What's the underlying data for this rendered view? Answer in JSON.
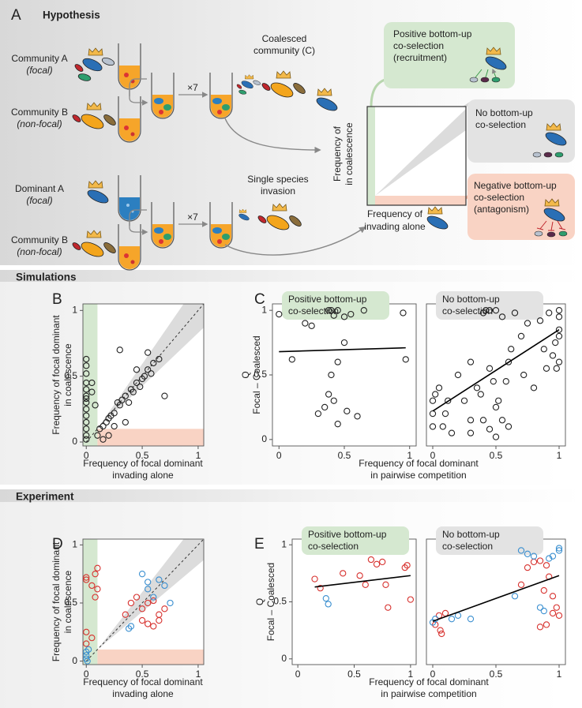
{
  "hypothesis": {
    "letter": "A",
    "title": "Hypothesis",
    "community_a": [
      "Community A",
      "(focal)"
    ],
    "community_b1": [
      "Community B",
      "(non-focal)"
    ],
    "repeat1": "×7",
    "coalesced": [
      "Coalesced",
      "community (C)"
    ],
    "dominant_a": [
      "Dominant A",
      "(focal)"
    ],
    "community_b2": [
      "Community B",
      "(non-focal)"
    ],
    "repeat2": "×7",
    "single": [
      "Single species",
      "invasion"
    ],
    "axis_y": [
      "Frequency of",
      "in coalescence"
    ],
    "axis_x": [
      "Frequency of",
      "invading alone"
    ],
    "positive": [
      "Positive bottom-up",
      "co-selection",
      "(recruitment)"
    ],
    "none": [
      "No bottom-up",
      "co-selection"
    ],
    "negative": [
      "Negative bottom-up",
      "co-selection",
      "(antagonism)"
    ]
  },
  "sections": {
    "simulations": "Simulations",
    "experiment": "Experiment"
  },
  "chart_data": [
    {
      "type": "scatter",
      "label": "B",
      "xlabel": [
        "Frequency of focal dominant",
        "invading alone"
      ],
      "ylabel": [
        "Frequency of focal dominant",
        "in coalescence"
      ],
      "xlim": [
        -0.03,
        1.05
      ],
      "ylim": [
        -0.03,
        1.05
      ],
      "xticks": [
        0,
        0.5,
        1
      ],
      "yticks": [
        0,
        0.5,
        1
      ],
      "diagonal": true,
      "shade": 0.1,
      "series": [
        {
          "color": "#222222",
          "x": [
            0,
            0,
            0,
            0,
            0,
            0,
            0,
            0,
            0,
            0,
            0,
            0,
            0,
            0,
            0.05,
            0.08,
            0.05,
            0.1,
            0.12,
            0.15,
            0.18,
            0.2,
            0.22,
            0.25,
            0.28,
            0.3,
            0.32,
            0.35,
            0.38,
            0.4,
            0.42,
            0.45,
            0.48,
            0.5,
            0.52,
            0.55,
            0.58,
            0.6,
            0.55,
            0.65,
            0.7,
            0.3,
            0.35,
            0.45,
            0.2,
            0.15,
            0.25
          ],
          "values": [
            0.63,
            0.58,
            0.52,
            0.45,
            0.4,
            0.35,
            0.33,
            0.3,
            0.25,
            0.2,
            0.15,
            0.1,
            0.05,
            0.02,
            0.45,
            0.28,
            0.38,
            0.05,
            0.1,
            0.12,
            0.15,
            0.18,
            0.2,
            0.22,
            0.3,
            0.28,
            0.32,
            0.35,
            0.3,
            0.4,
            0.38,
            0.45,
            0.42,
            0.48,
            0.5,
            0.55,
            0.52,
            0.6,
            0.68,
            0.63,
            0.35,
            0.7,
            0.15,
            0.55,
            0.05,
            0.02,
            0.12
          ]
        }
      ]
    },
    {
      "type": "scatter",
      "label": "C",
      "title": [
        "Positive bottom-up",
        "co-selection"
      ],
      "title_fill": "#d5e8d0",
      "ylabel": [
        "Q",
        "Focal – Coalesced"
      ],
      "xlabel": [
        "Frequency of focal dominant",
        "in pairwise competition"
      ],
      "xlim": [
        -0.05,
        1.05
      ],
      "ylim": [
        -0.05,
        1.05
      ],
      "xticks": [
        0,
        0.5,
        1
      ],
      "yticks": [
        0,
        0.5,
        1
      ],
      "series": [
        {
          "color": "#222222",
          "x": [
            0,
            0.1,
            0.2,
            0.25,
            0.3,
            0.38,
            0.4,
            0.42,
            0.45,
            0.45,
            0.4,
            0.35,
            0.38,
            0.42,
            0.45,
            0.5,
            0.52,
            0.55,
            0.5,
            0.6,
            0.65,
            0.95,
            0.97
          ],
          "values": [
            0.97,
            0.62,
            0.9,
            0.88,
            0.2,
            1,
            1,
            0.96,
            1,
            0.6,
            0.5,
            0.25,
            0.35,
            0.3,
            0.12,
            0.95,
            0.22,
            0.97,
            0.75,
            0.18,
            1,
            0.98,
            0.62
          ]
        }
      ],
      "fit": {
        "color": "#000000",
        "x": [
          0,
          0.97
        ],
        "values": [
          0.68,
          0.71
        ]
      }
    },
    {
      "type": "scatter",
      "title": [
        "No bottom-up",
        "co-selection"
      ],
      "title_fill": "#e3e3e3",
      "xlim": [
        -0.05,
        1.05
      ],
      "ylim": [
        -0.05,
        1.05
      ],
      "xticks": [
        0,
        0.5,
        1
      ],
      "series": [
        {
          "color": "#222222",
          "x": [
            0,
            0,
            0,
            0.02,
            0.05,
            0.08,
            0.1,
            0.12,
            0.15,
            0.2,
            0.25,
            0.3,
            0.3,
            0.35,
            0.38,
            0.4,
            0.42,
            0.45,
            0.45,
            0.48,
            0.5,
            0.5,
            0.52,
            0.55,
            0.55,
            0.58,
            0.6,
            0.6,
            0.62,
            0.65,
            0.7,
            0.72,
            0.75,
            0.8,
            0.85,
            0.88,
            0.9,
            0.92,
            0.95,
            0.97,
            1,
            1,
            1,
            1,
            1,
            0.98,
            0.45,
            0.5,
            0.4,
            0.3
          ],
          "values": [
            0.3,
            0.2,
            0.1,
            0.35,
            0.4,
            0.1,
            0.2,
            0.3,
            0.05,
            0.5,
            0.3,
            0.15,
            0.6,
            0.4,
            0.35,
            0.98,
            1,
            1,
            0.55,
            0.45,
            1,
            0.25,
            0.3,
            0.95,
            0.15,
            0.45,
            0.6,
            0.1,
            0.7,
            0.98,
            0.8,
            0.5,
            0.9,
            0.4,
            0.92,
            0.7,
            0.55,
            0.98,
            0.65,
            0.75,
            1,
            0.95,
            0.85,
            0.6,
            0.8,
            0.55,
            0.08,
            0.02,
            0.15,
            0.05
          ]
        }
      ],
      "fit": {
        "color": "#000000",
        "x": [
          0,
          1
        ],
        "values": [
          0.22,
          0.85
        ]
      }
    },
    {
      "type": "scatter",
      "label": "D",
      "xlabel": [
        "Frequency of focal dominant",
        "invading alone"
      ],
      "ylabel": [
        "Frequency of focal dominant",
        "in coalescence"
      ],
      "xlim": [
        -0.03,
        1.05
      ],
      "ylim": [
        -0.03,
        1.05
      ],
      "xticks": [
        0,
        0.5,
        1
      ],
      "yticks": [
        0,
        0.5,
        1
      ],
      "diagonal": true,
      "shade": 0.1,
      "series": [
        {
          "color": "#d7312e",
          "x": [
            0,
            0,
            0,
            0,
            0.1,
            0.08,
            0.1,
            0.08,
            0.05,
            0.05,
            0.35,
            0.4,
            0.45,
            0.5,
            0.5,
            0.55,
            0.55,
            0.6,
            0.65,
            0.7,
            0.65,
            0.6
          ],
          "values": [
            0.72,
            0.7,
            0.25,
            0.15,
            0.8,
            0.75,
            0.62,
            0.55,
            0.65,
            0.2,
            0.4,
            0.5,
            0.55,
            0.45,
            0.35,
            0.5,
            0.32,
            0.52,
            0.4,
            0.45,
            0.35,
            0.3
          ]
        },
        {
          "color": "#3a8fd0",
          "x": [
            0,
            0,
            0,
            0.02,
            0.01,
            0.38,
            0.4,
            0.5,
            0.55,
            0.55,
            0.6,
            0.65,
            0.7,
            0.75
          ],
          "values": [
            0.02,
            0.05,
            0.08,
            0.1,
            0,
            0.28,
            0.3,
            0.75,
            0.68,
            0.62,
            0.55,
            0.7,
            0.65,
            0.5
          ]
        }
      ]
    },
    {
      "type": "scatter",
      "label": "E",
      "title": [
        "Positive bottom-up",
        "co-selection"
      ],
      "title_fill": "#d5e8d0",
      "ylabel": [
        "Q",
        "Focal – Coalesced"
      ],
      "xlabel": [
        "Frequency of focal dominant",
        "in pairwise competition"
      ],
      "xlim": [
        -0.05,
        1.05
      ],
      "ylim": [
        -0.05,
        1.05
      ],
      "xticks": [
        0,
        0.5,
        1
      ],
      "yticks": [
        0,
        0.5,
        1
      ],
      "series": [
        {
          "color": "#d7312e",
          "x": [
            0.15,
            0.2,
            0.4,
            0.55,
            0.6,
            0.65,
            0.7,
            0.75,
            0.78,
            0.8,
            0.95,
            0.97,
            1
          ],
          "values": [
            0.7,
            0.62,
            0.75,
            0.73,
            0.65,
            0.87,
            0.83,
            0.85,
            0.65,
            0.45,
            0.8,
            0.82,
            0.52
          ]
        },
        {
          "color": "#3a8fd0",
          "x": [
            0.25,
            0.27
          ],
          "values": [
            0.53,
            0.48
          ]
        }
      ],
      "fit": {
        "color": "#000000",
        "x": [
          0.15,
          1
        ],
        "values": [
          0.63,
          0.73
        ]
      }
    },
    {
      "type": "scatter",
      "title": [
        "No bottom-up",
        "co-selection"
      ],
      "title_fill": "#e3e3e3",
      "xlim": [
        -0.05,
        1.05
      ],
      "ylim": [
        -0.05,
        1.05
      ],
      "xticks": [
        0,
        0.5,
        1
      ],
      "series": [
        {
          "color": "#d7312e",
          "x": [
            0.05,
            0.06,
            0.07,
            0.1,
            0.02,
            0.75,
            0.8,
            0.85,
            0.9,
            0.92,
            0.88,
            0.95,
            0.98,
            0.9,
            0.95,
            1,
            0.85,
            0.7
          ],
          "values": [
            0.38,
            0.25,
            0.22,
            0.4,
            0.3,
            0.8,
            0.85,
            0.86,
            0.82,
            0.72,
            0.6,
            0.55,
            0.45,
            0.3,
            0.4,
            0.38,
            0.28,
            0.65
          ]
        },
        {
          "color": "#3a8fd0",
          "x": [
            0,
            0.02,
            0.15,
            0.2,
            0.3,
            0.65,
            0.7,
            0.75,
            0.8,
            0.85,
            0.88,
            0.92,
            0.95,
            1,
            1
          ],
          "values": [
            0.32,
            0.35,
            0.35,
            0.38,
            0.35,
            0.55,
            0.95,
            0.92,
            0.9,
            0.45,
            0.42,
            0.88,
            0.9,
            0.97,
            0.95
          ]
        }
      ],
      "fit": {
        "color": "#000000",
        "x": [
          0,
          1
        ],
        "values": [
          0.33,
          0.73
        ]
      }
    }
  ]
}
